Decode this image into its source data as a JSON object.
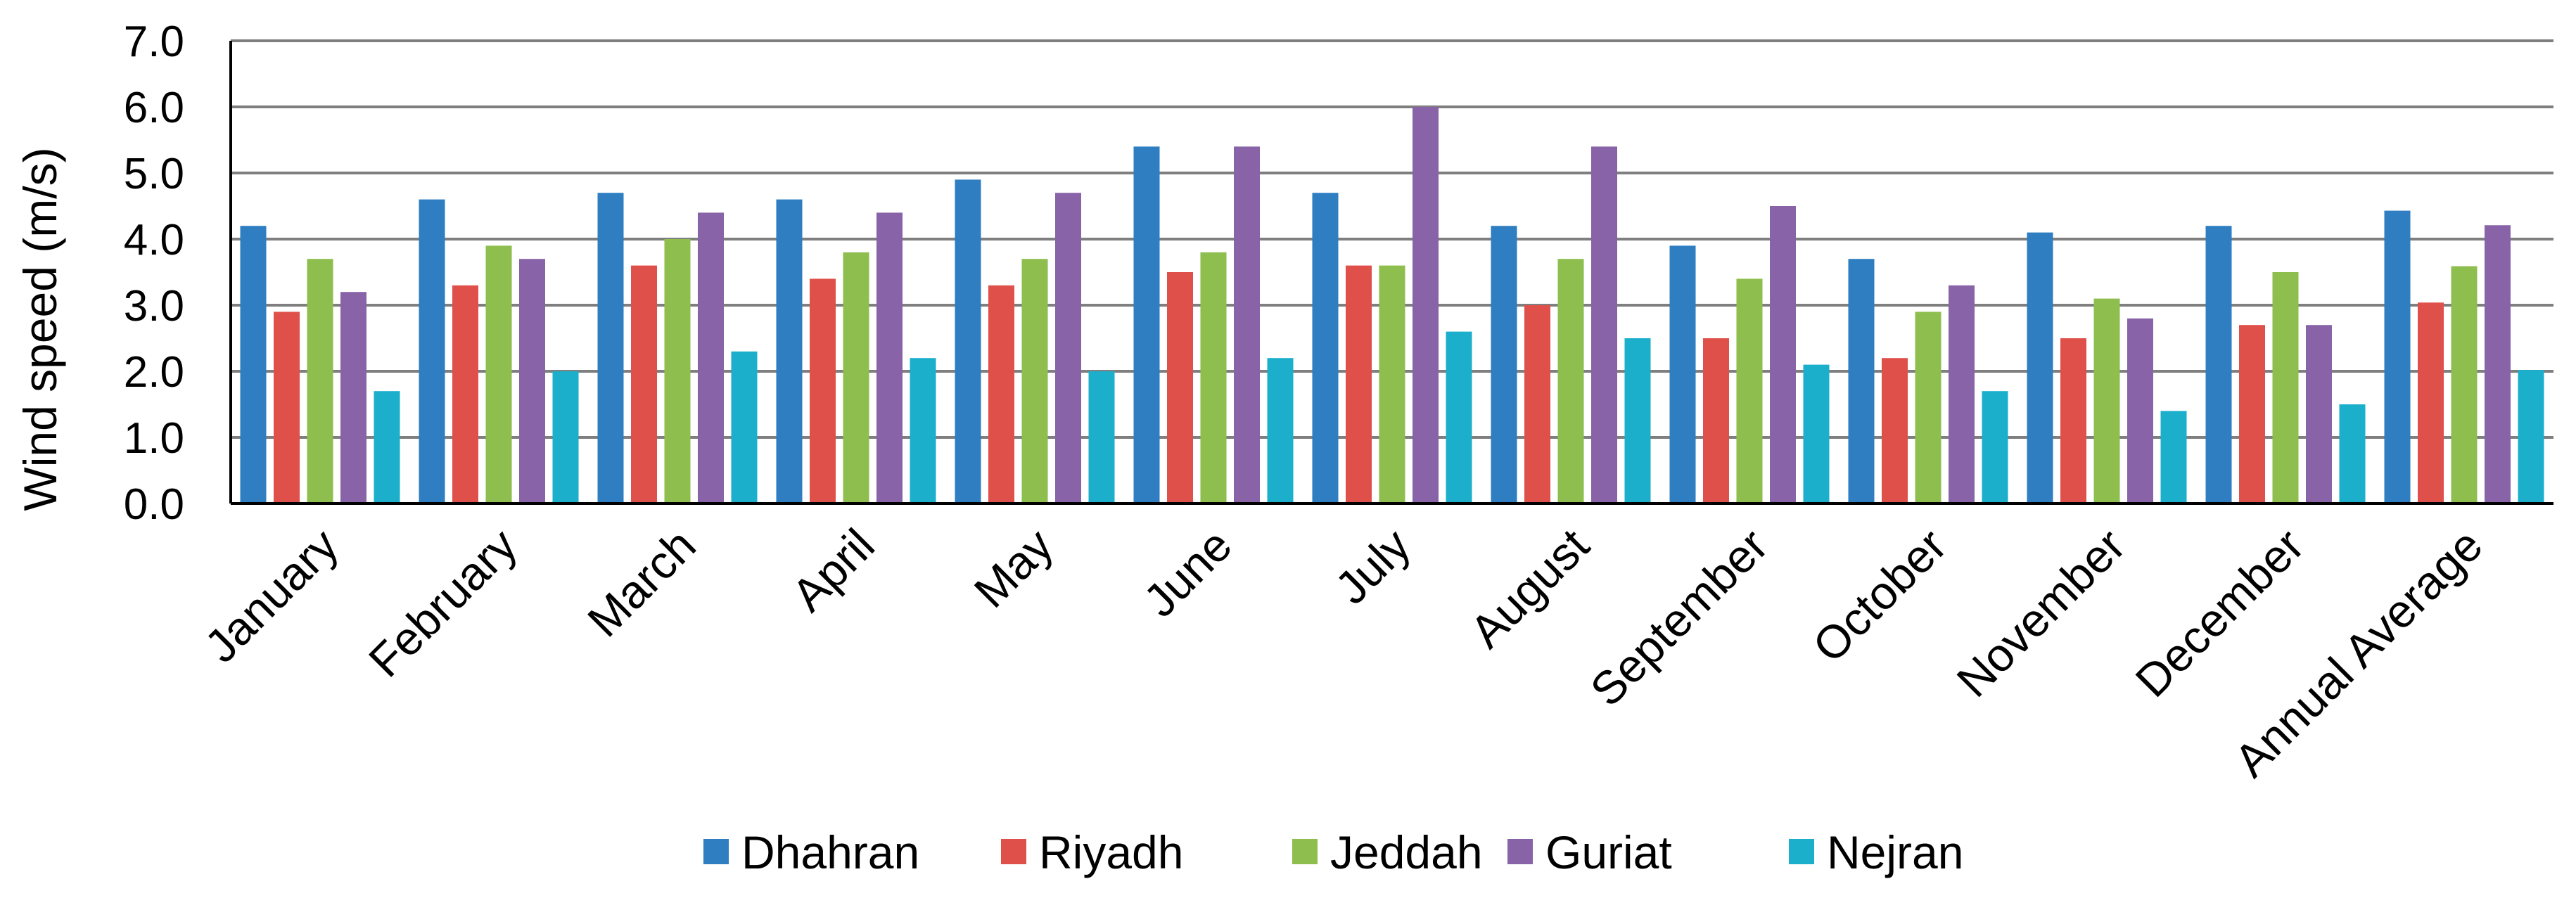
{
  "chart_data": {
    "type": "bar",
    "ylabel": "Wind speed (m/s)",
    "ylim": [
      0,
      7
    ],
    "yticks": [
      "0.0",
      "1.0",
      "2.0",
      "3.0",
      "4.0",
      "5.0",
      "6.0",
      "7.0"
    ],
    "grid": true,
    "legend_position": "bottom",
    "categories": [
      "January",
      "February",
      "March",
      "April",
      "May",
      "June",
      "July",
      "August",
      "September",
      "October",
      "November",
      "December",
      "Annual Average"
    ],
    "series": [
      {
        "name": "Dhahran",
        "color": "#2E7EC1",
        "values": [
          4.2,
          4.6,
          4.7,
          4.6,
          4.9,
          5.4,
          4.7,
          4.2,
          3.9,
          3.7,
          4.1,
          4.2,
          4.43
        ]
      },
      {
        "name": "Riyadh",
        "color": "#E0504A",
        "values": [
          2.9,
          3.3,
          3.6,
          3.4,
          3.3,
          3.5,
          3.6,
          3.0,
          2.5,
          2.2,
          2.5,
          2.7,
          3.04
        ]
      },
      {
        "name": "Jeddah",
        "color": "#8DBE4E",
        "values": [
          3.7,
          3.9,
          4.0,
          3.8,
          3.7,
          3.8,
          3.6,
          3.7,
          3.4,
          2.9,
          3.1,
          3.5,
          3.59
        ]
      },
      {
        "name": "Guriat",
        "color": "#8863A8",
        "values": [
          3.2,
          3.7,
          4.4,
          4.4,
          4.7,
          5.4,
          6.0,
          5.4,
          4.5,
          3.3,
          2.8,
          2.7,
          4.21
        ]
      },
      {
        "name": "Nejran",
        "color": "#1BAFCC",
        "values": [
          1.7,
          2.0,
          2.3,
          2.2,
          2.0,
          2.2,
          2.6,
          2.5,
          2.1,
          1.7,
          1.4,
          1.5,
          2.02
        ]
      }
    ]
  }
}
